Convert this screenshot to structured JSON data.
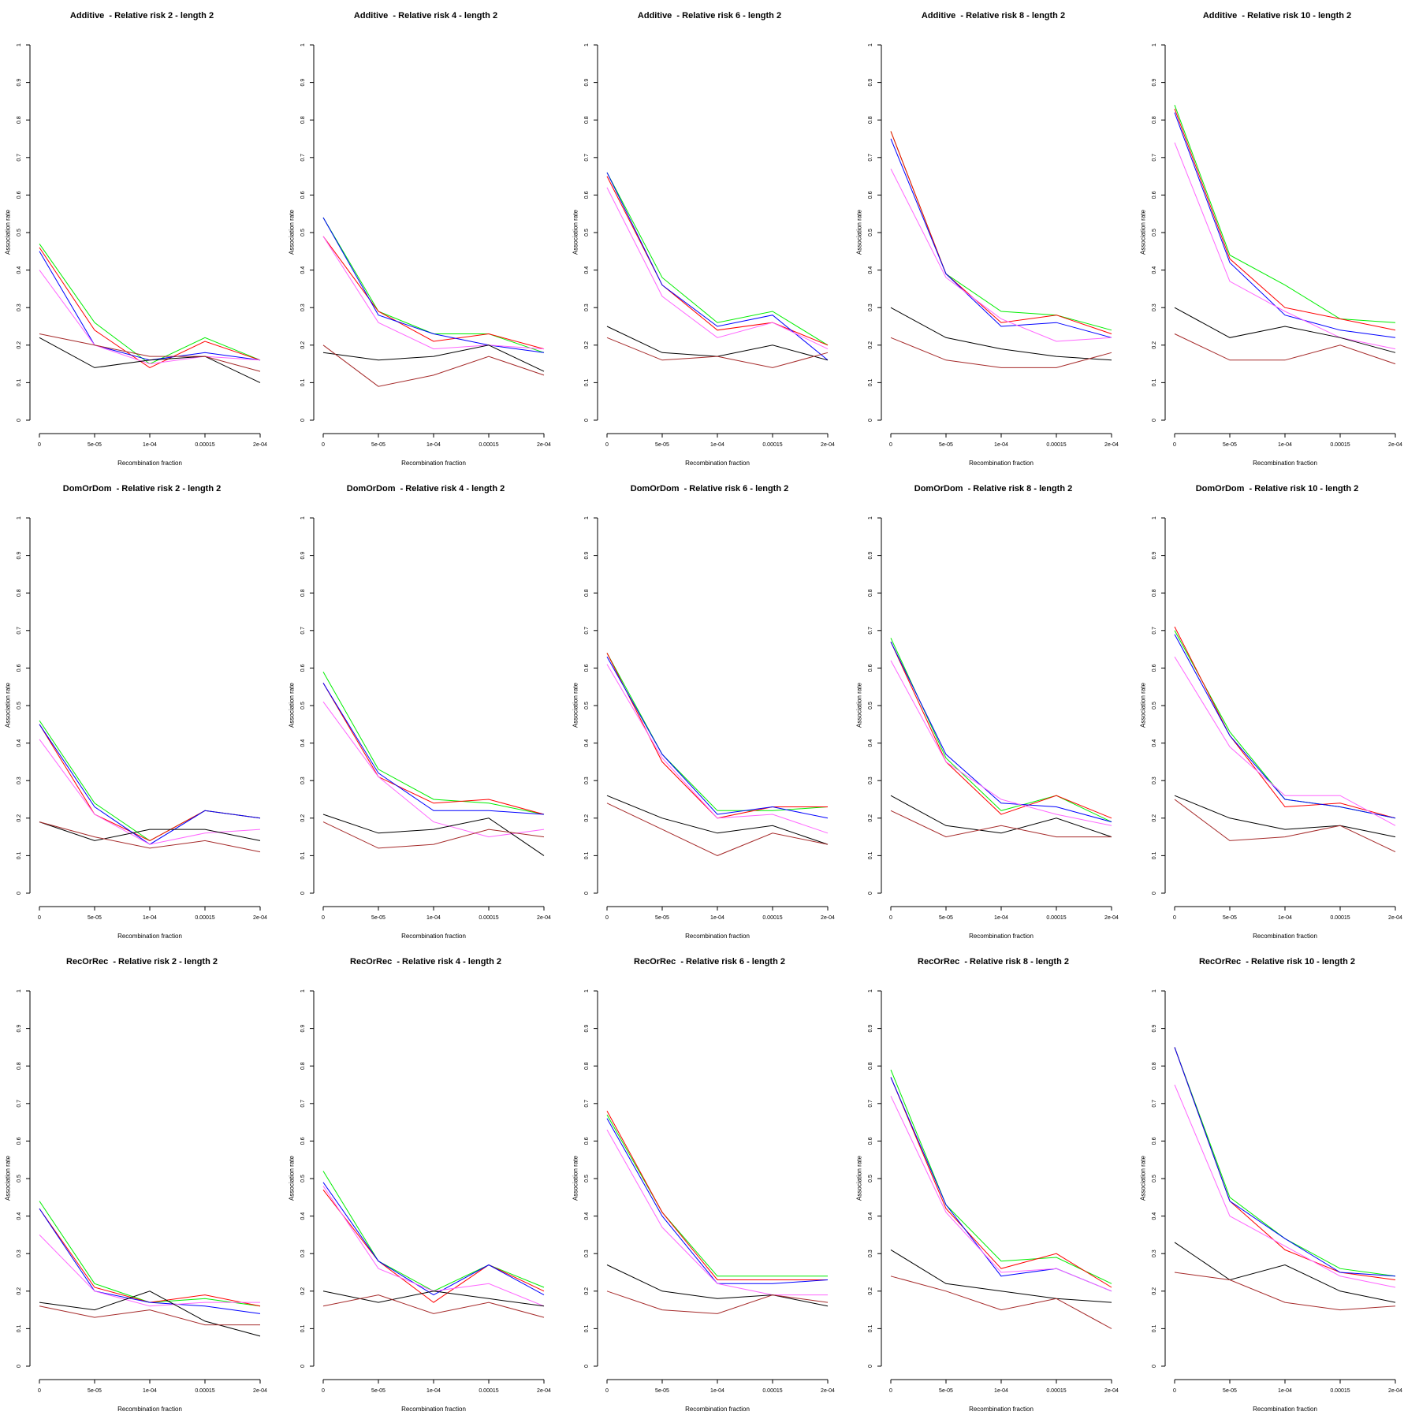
{
  "chart_data": {
    "type": "line",
    "x": [
      "0",
      "5e-05",
      "1e-04",
      "0.00015",
      "2e-04"
    ],
    "xlabel": "Recombination fraction",
    "ylabel": "Association rate",
    "yticks": [
      "0",
      "0.1",
      "0.2",
      "0.3",
      "0.4",
      "0.5",
      "0.6",
      "0.7",
      "0.8",
      "0.9",
      "1"
    ],
    "ylim": [
      0,
      1
    ],
    "grid": false,
    "colors": {
      "green": "#00ee00",
      "blue": "#0000ff",
      "red": "#ff0000",
      "pink": "#ff66ff",
      "black": "#000000",
      "brown": "#a52a2a"
    },
    "panels": [
      {
        "title": "Additive  - Relative risk 2 - length 2",
        "series": [
          {
            "color": "green",
            "values": [
              0.47,
              0.26,
              0.15,
              0.22,
              0.16
            ]
          },
          {
            "color": "red",
            "values": [
              0.46,
              0.24,
              0.14,
              0.21,
              0.16
            ]
          },
          {
            "color": "blue",
            "values": [
              0.45,
              0.2,
              0.16,
              0.18,
              0.16
            ]
          },
          {
            "color": "pink",
            "values": [
              0.4,
              0.2,
              0.15,
              0.17,
              0.16
            ]
          },
          {
            "color": "black",
            "values": [
              0.22,
              0.14,
              0.16,
              0.17,
              0.1
            ]
          },
          {
            "color": "brown",
            "values": [
              0.23,
              0.2,
              0.17,
              0.17,
              0.13
            ]
          }
        ]
      },
      {
        "title": "Additive  - Relative risk 4 - length 2",
        "series": [
          {
            "color": "green",
            "values": [
              0.54,
              0.29,
              0.23,
              0.23,
              0.18
            ]
          },
          {
            "color": "red",
            "values": [
              0.49,
              0.29,
              0.21,
              0.23,
              0.19
            ]
          },
          {
            "color": "blue",
            "values": [
              0.54,
              0.28,
              0.23,
              0.2,
              0.18
            ]
          },
          {
            "color": "pink",
            "values": [
              0.49,
              0.26,
              0.19,
              0.2,
              0.19
            ]
          },
          {
            "color": "black",
            "values": [
              0.18,
              0.16,
              0.17,
              0.2,
              0.13
            ]
          },
          {
            "color": "brown",
            "values": [
              0.2,
              0.09,
              0.12,
              0.17,
              0.12
            ]
          }
        ]
      },
      {
        "title": "Additive  - Relative risk 6 - length 2",
        "series": [
          {
            "color": "green",
            "values": [
              0.66,
              0.38,
              0.26,
              0.29,
              0.2
            ]
          },
          {
            "color": "red",
            "values": [
              0.65,
              0.36,
              0.24,
              0.26,
              0.2
            ]
          },
          {
            "color": "blue",
            "values": [
              0.66,
              0.36,
              0.25,
              0.28,
              0.16
            ]
          },
          {
            "color": "pink",
            "values": [
              0.62,
              0.33,
              0.22,
              0.26,
              0.19
            ]
          },
          {
            "color": "black",
            "values": [
              0.25,
              0.18,
              0.17,
              0.2,
              0.16
            ]
          },
          {
            "color": "brown",
            "values": [
              0.22,
              0.16,
              0.17,
              0.14,
              0.18
            ]
          }
        ]
      },
      {
        "title": "Additive  - Relative risk 8 - length 2",
        "series": [
          {
            "color": "green",
            "values": [
              0.77,
              0.39,
              0.29,
              0.28,
              0.24
            ]
          },
          {
            "color": "red",
            "values": [
              0.77,
              0.39,
              0.26,
              0.28,
              0.23
            ]
          },
          {
            "color": "blue",
            "values": [
              0.75,
              0.39,
              0.25,
              0.26,
              0.22
            ]
          },
          {
            "color": "pink",
            "values": [
              0.67,
              0.38,
              0.27,
              0.21,
              0.22
            ]
          },
          {
            "color": "black",
            "values": [
              0.3,
              0.22,
              0.19,
              0.17,
              0.16
            ]
          },
          {
            "color": "brown",
            "values": [
              0.22,
              0.16,
              0.14,
              0.14,
              0.18
            ]
          }
        ]
      },
      {
        "title": "Additive  - Relative risk 10 - length 2",
        "series": [
          {
            "color": "green",
            "values": [
              0.84,
              0.44,
              0.36,
              0.27,
              0.26
            ]
          },
          {
            "color": "red",
            "values": [
              0.83,
              0.43,
              0.3,
              0.27,
              0.24
            ]
          },
          {
            "color": "blue",
            "values": [
              0.82,
              0.42,
              0.28,
              0.24,
              0.22
            ]
          },
          {
            "color": "pink",
            "values": [
              0.74,
              0.37,
              0.29,
              0.22,
              0.19
            ]
          },
          {
            "color": "black",
            "values": [
              0.3,
              0.22,
              0.25,
              0.22,
              0.18
            ]
          },
          {
            "color": "brown",
            "values": [
              0.23,
              0.16,
              0.16,
              0.2,
              0.15
            ]
          }
        ]
      },
      {
        "title": "DomOrDom  - Relative risk 2 - length 2",
        "series": [
          {
            "color": "green",
            "values": [
              0.46,
              0.24,
              0.14,
              0.22,
              0.2
            ]
          },
          {
            "color": "red",
            "values": [
              0.45,
              0.21,
              0.14,
              0.22,
              0.2
            ]
          },
          {
            "color": "blue",
            "values": [
              0.45,
              0.23,
              0.13,
              0.22,
              0.2
            ]
          },
          {
            "color": "pink",
            "values": [
              0.41,
              0.21,
              0.13,
              0.16,
              0.17
            ]
          },
          {
            "color": "black",
            "values": [
              0.19,
              0.14,
              0.17,
              0.17,
              0.14
            ]
          },
          {
            "color": "brown",
            "values": [
              0.19,
              0.15,
              0.12,
              0.14,
              0.11
            ]
          }
        ]
      },
      {
        "title": "DomOrDom  - Relative risk 4 - length 2",
        "series": [
          {
            "color": "green",
            "values": [
              0.59,
              0.33,
              0.25,
              0.24,
              0.21
            ]
          },
          {
            "color": "red",
            "values": [
              0.56,
              0.31,
              0.24,
              0.25,
              0.21
            ]
          },
          {
            "color": "blue",
            "values": [
              0.56,
              0.32,
              0.22,
              0.22,
              0.21
            ]
          },
          {
            "color": "pink",
            "values": [
              0.51,
              0.31,
              0.19,
              0.15,
              0.17
            ]
          },
          {
            "color": "black",
            "values": [
              0.21,
              0.16,
              0.17,
              0.2,
              0.1
            ]
          },
          {
            "color": "brown",
            "values": [
              0.19,
              0.12,
              0.13,
              0.17,
              0.15
            ]
          }
        ]
      },
      {
        "title": "DomOrDom  - Relative risk 6 - length 2",
        "series": [
          {
            "color": "green",
            "values": [
              0.64,
              0.37,
              0.22,
              0.22,
              0.23
            ]
          },
          {
            "color": "red",
            "values": [
              0.64,
              0.35,
              0.2,
              0.23,
              0.23
            ]
          },
          {
            "color": "blue",
            "values": [
              0.63,
              0.37,
              0.21,
              0.23,
              0.2
            ]
          },
          {
            "color": "pink",
            "values": [
              0.61,
              0.36,
              0.2,
              0.21,
              0.16
            ]
          },
          {
            "color": "black",
            "values": [
              0.26,
              0.2,
              0.16,
              0.18,
              0.13
            ]
          },
          {
            "color": "brown",
            "values": [
              0.24,
              0.17,
              0.1,
              0.16,
              0.13
            ]
          }
        ]
      },
      {
        "title": "DomOrDom  - Relative risk 8 - length 2",
        "series": [
          {
            "color": "green",
            "values": [
              0.68,
              0.36,
              0.22,
              0.26,
              0.19
            ]
          },
          {
            "color": "red",
            "values": [
              0.67,
              0.35,
              0.21,
              0.26,
              0.2
            ]
          },
          {
            "color": "blue",
            "values": [
              0.67,
              0.37,
              0.24,
              0.23,
              0.19
            ]
          },
          {
            "color": "pink",
            "values": [
              0.62,
              0.35,
              0.25,
              0.21,
              0.18
            ]
          },
          {
            "color": "black",
            "values": [
              0.26,
              0.18,
              0.16,
              0.2,
              0.15
            ]
          },
          {
            "color": "brown",
            "values": [
              0.22,
              0.15,
              0.18,
              0.15,
              0.15
            ]
          }
        ]
      },
      {
        "title": "DomOrDom  - Relative risk 10 - length 2",
        "series": [
          {
            "color": "green",
            "values": [
              0.7,
              0.43,
              0.25,
              0.23,
              0.2
            ]
          },
          {
            "color": "red",
            "values": [
              0.71,
              0.42,
              0.23,
              0.24,
              0.2
            ]
          },
          {
            "color": "blue",
            "values": [
              0.69,
              0.42,
              0.25,
              0.23,
              0.2
            ]
          },
          {
            "color": "pink",
            "values": [
              0.63,
              0.39,
              0.26,
              0.26,
              0.18
            ]
          },
          {
            "color": "black",
            "values": [
              0.26,
              0.2,
              0.17,
              0.18,
              0.15
            ]
          },
          {
            "color": "brown",
            "values": [
              0.25,
              0.14,
              0.15,
              0.18,
              0.11
            ]
          }
        ]
      },
      {
        "title": "RecOrRec  - Relative risk 2 - length 2",
        "series": [
          {
            "color": "green",
            "values": [
              0.44,
              0.22,
              0.17,
              0.18,
              0.16
            ]
          },
          {
            "color": "red",
            "values": [
              0.42,
              0.21,
              0.17,
              0.19,
              0.16
            ]
          },
          {
            "color": "blue",
            "values": [
              0.42,
              0.2,
              0.17,
              0.16,
              0.14
            ]
          },
          {
            "color": "pink",
            "values": [
              0.35,
              0.2,
              0.16,
              0.17,
              0.17
            ]
          },
          {
            "color": "black",
            "values": [
              0.17,
              0.15,
              0.2,
              0.12,
              0.08
            ]
          },
          {
            "color": "brown",
            "values": [
              0.16,
              0.13,
              0.15,
              0.11,
              0.11
            ]
          }
        ]
      },
      {
        "title": "RecOrRec  - Relative risk 4 - length 2",
        "series": [
          {
            "color": "green",
            "values": [
              0.52,
              0.28,
              0.2,
              0.27,
              0.21
            ]
          },
          {
            "color": "red",
            "values": [
              0.47,
              0.28,
              0.17,
              0.27,
              0.2
            ]
          },
          {
            "color": "blue",
            "values": [
              0.49,
              0.28,
              0.19,
              0.27,
              0.19
            ]
          },
          {
            "color": "pink",
            "values": [
              0.48,
              0.26,
              0.2,
              0.22,
              0.16
            ]
          },
          {
            "color": "black",
            "values": [
              0.2,
              0.17,
              0.2,
              0.18,
              0.16
            ]
          },
          {
            "color": "brown",
            "values": [
              0.16,
              0.19,
              0.14,
              0.17,
              0.13
            ]
          }
        ]
      },
      {
        "title": "RecOrRec  - Relative risk 6 - length 2",
        "series": [
          {
            "color": "green",
            "values": [
              0.67,
              0.41,
              0.24,
              0.24,
              0.24
            ]
          },
          {
            "color": "red",
            "values": [
              0.68,
              0.41,
              0.23,
              0.23,
              0.23
            ]
          },
          {
            "color": "blue",
            "values": [
              0.66,
              0.4,
              0.22,
              0.22,
              0.23
            ]
          },
          {
            "color": "pink",
            "values": [
              0.63,
              0.37,
              0.22,
              0.19,
              0.19
            ]
          },
          {
            "color": "black",
            "values": [
              0.27,
              0.2,
              0.18,
              0.19,
              0.16
            ]
          },
          {
            "color": "brown",
            "values": [
              0.2,
              0.15,
              0.14,
              0.19,
              0.17
            ]
          }
        ]
      },
      {
        "title": "RecOrRec  - Relative risk 8 - length 2",
        "series": [
          {
            "color": "green",
            "values": [
              0.79,
              0.43,
              0.28,
              0.29,
              0.22
            ]
          },
          {
            "color": "red",
            "values": [
              0.77,
              0.42,
              0.26,
              0.3,
              0.21
            ]
          },
          {
            "color": "blue",
            "values": [
              0.77,
              0.43,
              0.24,
              0.26,
              0.2
            ]
          },
          {
            "color": "pink",
            "values": [
              0.72,
              0.41,
              0.25,
              0.26,
              0.2
            ]
          },
          {
            "color": "black",
            "values": [
              0.31,
              0.22,
              0.2,
              0.18,
              0.17
            ]
          },
          {
            "color": "brown",
            "values": [
              0.24,
              0.2,
              0.15,
              0.18,
              0.1
            ]
          }
        ]
      },
      {
        "title": "RecOrRec  - Relative risk 10 - length 2",
        "series": [
          {
            "color": "green",
            "values": [
              0.85,
              0.45,
              0.34,
              0.26,
              0.24
            ]
          },
          {
            "color": "red",
            "values": [
              0.85,
              0.44,
              0.31,
              0.25,
              0.23
            ]
          },
          {
            "color": "blue",
            "values": [
              0.85,
              0.44,
              0.34,
              0.25,
              0.24
            ]
          },
          {
            "color": "pink",
            "values": [
              0.75,
              0.4,
              0.32,
              0.24,
              0.21
            ]
          },
          {
            "color": "black",
            "values": [
              0.33,
              0.23,
              0.27,
              0.2,
              0.17
            ]
          },
          {
            "color": "brown",
            "values": [
              0.25,
              0.23,
              0.17,
              0.15,
              0.16
            ]
          }
        ]
      }
    ]
  }
}
